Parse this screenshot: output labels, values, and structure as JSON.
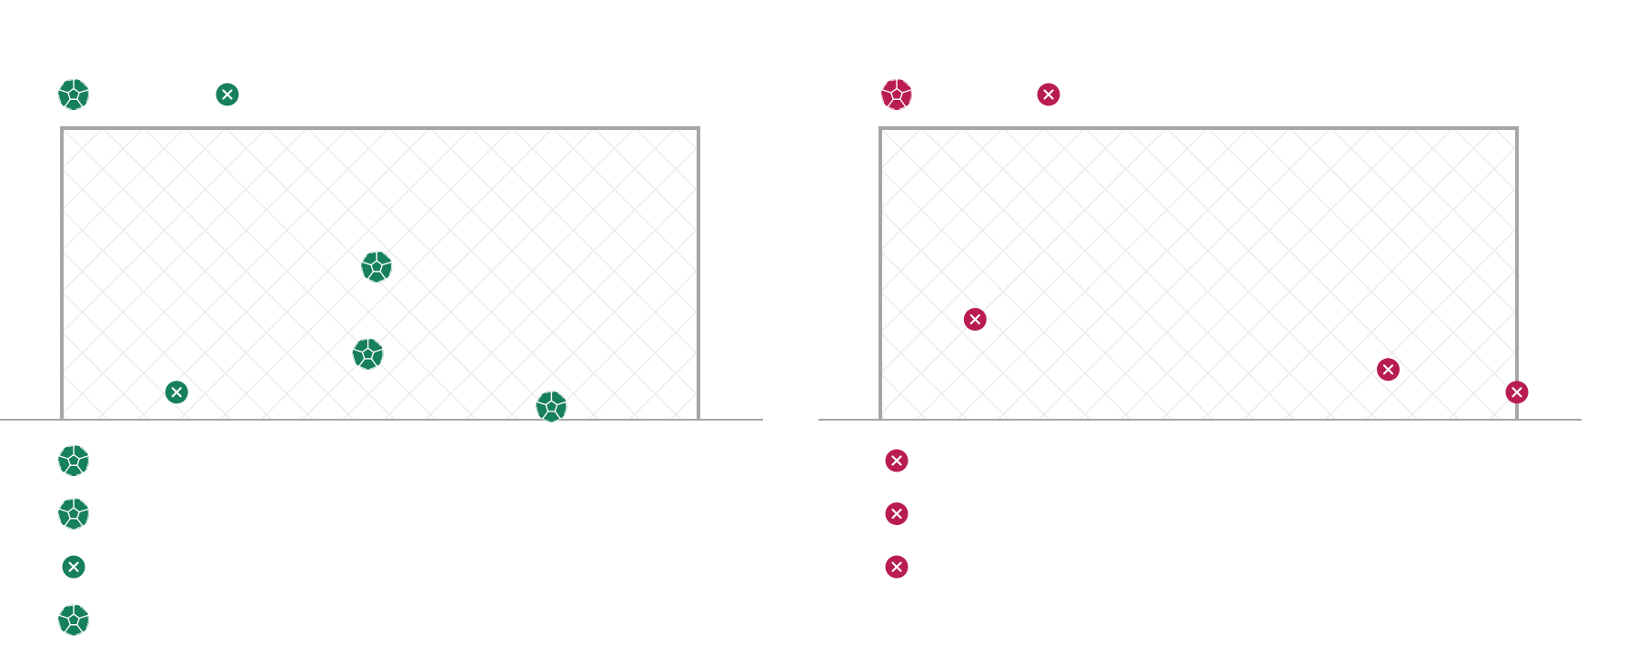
{
  "colors": {
    "post": "#a6a6a6",
    "ground": "#a6a6a6",
    "net": "#ececec",
    "icon_mark": "#ffffff"
  },
  "icons": {
    "goal": "soccer-ball-icon",
    "miss": "x-circle-icon"
  },
  "goal_units": "meters",
  "goal_size": {
    "width": 7.32,
    "height": 2.44
  },
  "teams": [
    {
      "color": "#167f5b",
      "header_icons": [
        "goal",
        "miss"
      ],
      "shots": [
        {
          "result": "goal",
          "x": 3.62,
          "y": 1.28
        },
        {
          "result": "goal",
          "x": 3.52,
          "y": 0.55
        },
        {
          "result": "miss",
          "x": 1.32,
          "y": 0.23
        },
        {
          "result": "goal",
          "x": 5.63,
          "y": 0.11
        }
      ],
      "sequence": [
        "goal",
        "goal",
        "miss",
        "goal"
      ]
    },
    {
      "color": "#b81c52",
      "header_icons": [
        "goal",
        "miss"
      ],
      "shots": [
        {
          "result": "miss",
          "x": 1.09,
          "y": 0.84
        },
        {
          "result": "miss",
          "x": 5.84,
          "y": 0.42
        },
        {
          "result": "miss",
          "x": 7.32,
          "y": 0.23
        }
      ],
      "sequence": [
        "miss",
        "miss",
        "miss"
      ]
    }
  ]
}
